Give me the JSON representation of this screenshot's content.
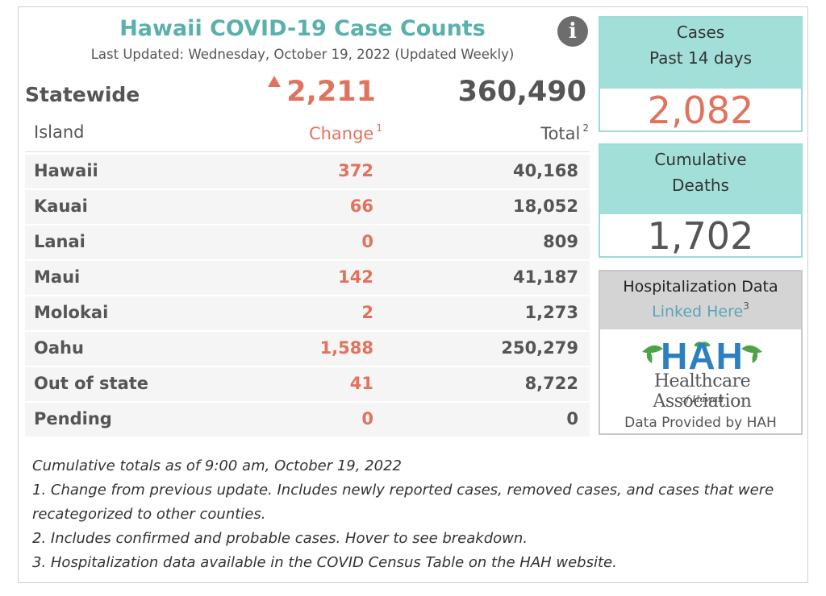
{
  "header": {
    "title": "Hawaii COVID-19 Case Counts",
    "last_updated": "Last Updated: Wednesday, October 19, 2022 (Updated Weekly)",
    "info_icon": "info-icon"
  },
  "statewide": {
    "label": "Statewide",
    "change": "2,211",
    "total": "360,490",
    "trend_icon": "up-arrow-icon"
  },
  "table": {
    "columns": {
      "island": "Island",
      "change": "Change",
      "change_note": "1",
      "total": "Total",
      "total_note": "2"
    },
    "rows": [
      {
        "island": "Hawaii",
        "change": "372",
        "total": "40,168"
      },
      {
        "island": "Kauai",
        "change": "66",
        "total": "18,052"
      },
      {
        "island": "Lanai",
        "change": "0",
        "total": "809"
      },
      {
        "island": "Maui",
        "change": "142",
        "total": "41,187"
      },
      {
        "island": "Molokai",
        "change": "2",
        "total": "1,273"
      },
      {
        "island": "Oahu",
        "change": "1,588",
        "total": "250,279"
      },
      {
        "island": "Out of state",
        "change": "41",
        "total": "8,722"
      },
      {
        "island": "Pending",
        "change": "0",
        "total": "0"
      }
    ]
  },
  "cases_card": {
    "line1": "Cases",
    "line2": "Past 14 days",
    "value": "2,082"
  },
  "deaths_card": {
    "line1": "Cumulative",
    "line2": "Deaths",
    "value": "1,702"
  },
  "hospitalization": {
    "title": "Hospitalization Data",
    "link": "Linked Here",
    "link_note": "3",
    "logo_letters": "HAH",
    "logo_name": "Healthcare Association",
    "logo_sub": "of Hawaii",
    "provided_by": "Data Provided by HAH"
  },
  "notes": [
    "Cumulative totals as of 9:00 am, October 19, 2022",
    "1. Change from previous update. Includes newly reported cases, removed cases, and cases that were recategorized to other counties.",
    "2. Includes confirmed and probable cases. Hover to see breakdown.",
    "3. Hospitalization data available in the COVID Census Table on the HAH website."
  ],
  "colors": {
    "title": "#5bb0ac",
    "change": "#e0735e",
    "card_header": "#a3dfd9",
    "link": "#5ba4b7",
    "logo_blue": "#2c7fc0",
    "logo_green": "#4ea445"
  }
}
